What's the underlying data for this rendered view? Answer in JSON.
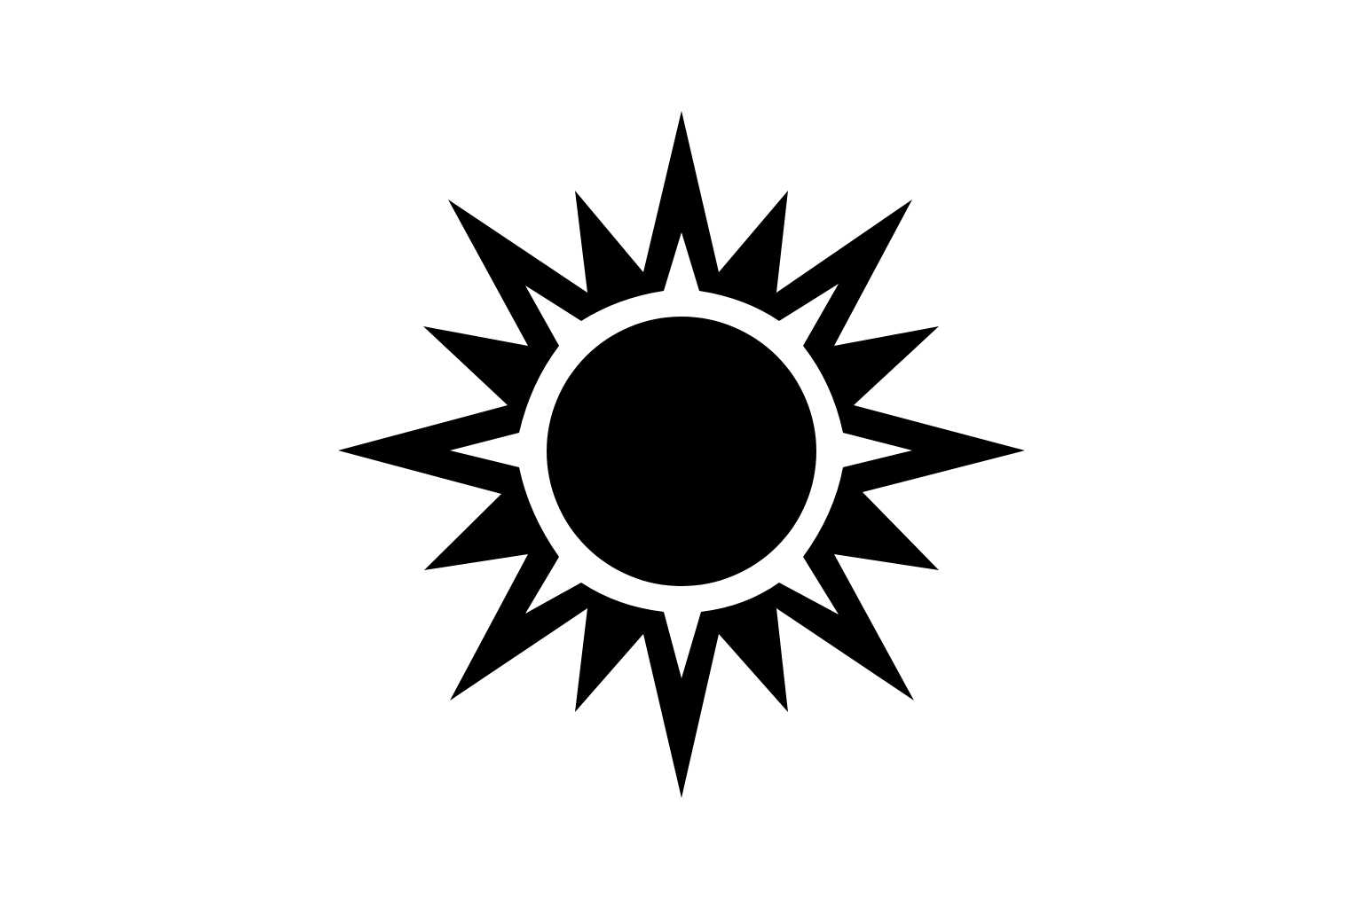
{
  "image": {
    "subject": "sun-icon",
    "background_color": "#ffffff",
    "foreground_color": "#000000",
    "outer_ray_count": 16,
    "inner_ray_count": 8
  }
}
